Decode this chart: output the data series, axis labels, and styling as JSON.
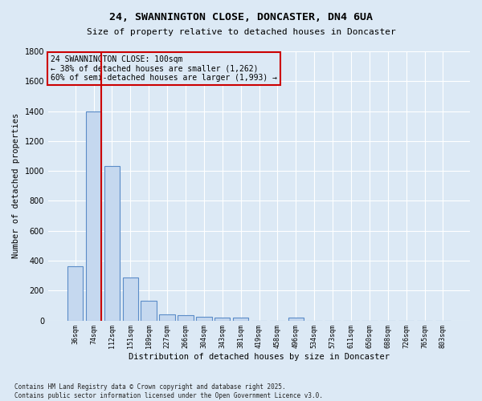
{
  "title_line1": "24, SWANNINGTON CLOSE, DONCASTER, DN4 6UA",
  "title_line2": "Size of property relative to detached houses in Doncaster",
  "xlabel": "Distribution of detached houses by size in Doncaster",
  "ylabel": "Number of detached properties",
  "categories": [
    "36sqm",
    "74sqm",
    "112sqm",
    "151sqm",
    "189sqm",
    "227sqm",
    "266sqm",
    "304sqm",
    "343sqm",
    "381sqm",
    "419sqm",
    "458sqm",
    "496sqm",
    "534sqm",
    "573sqm",
    "611sqm",
    "650sqm",
    "688sqm",
    "726sqm",
    "765sqm",
    "803sqm"
  ],
  "values": [
    360,
    1400,
    1035,
    290,
    130,
    42,
    35,
    25,
    18,
    18,
    0,
    0,
    20,
    0,
    0,
    0,
    0,
    0,
    0,
    0,
    0
  ],
  "bar_color": "#c5d8ef",
  "bar_edge_color": "#5b8cc8",
  "vline_color": "#cc0000",
  "vline_x_bar_index": 1,
  "annotation_box_text": "24 SWANNINGTON CLOSE: 100sqm\n← 38% of detached houses are smaller (1,262)\n60% of semi-detached houses are larger (1,993) →",
  "annotation_box_color": "#cc0000",
  "background_color": "#dce9f5",
  "grid_color": "#ffffff",
  "ylim": [
    0,
    1800
  ],
  "yticks": [
    0,
    200,
    400,
    600,
    800,
    1000,
    1200,
    1400,
    1600,
    1800
  ],
  "footnote": "Contains HM Land Registry data © Crown copyright and database right 2025.\nContains public sector information licensed under the Open Government Licence v3.0."
}
